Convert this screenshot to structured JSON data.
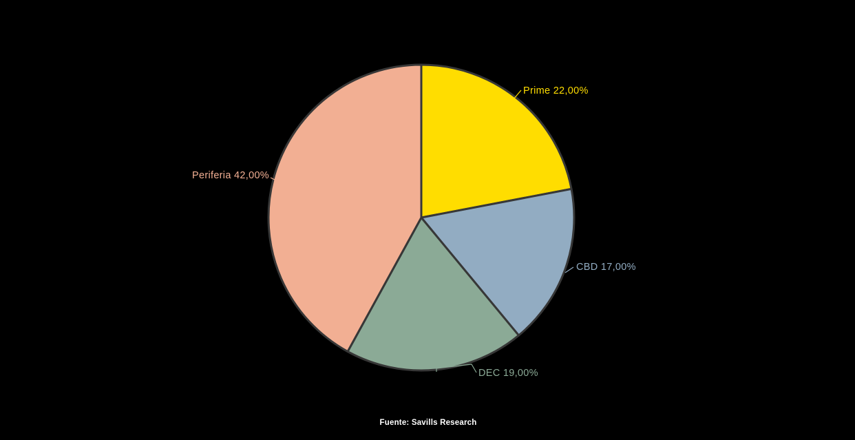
{
  "page": {
    "background_color": "#000000"
  },
  "chart_data": {
    "type": "pie",
    "title": "",
    "categories": [
      "Prime",
      "CBD",
      "DEC",
      "Periferia"
    ],
    "values": [
      22.0,
      17.0,
      19.0,
      42.0
    ],
    "unit": "%",
    "slices": [
      {
        "name": "Prime",
        "value": 22.0,
        "label": "Prime 22,00%",
        "color": "#FFDD00"
      },
      {
        "name": "CBD",
        "value": 17.0,
        "label": "CBD 17,00%",
        "color": "#92ACC2"
      },
      {
        "name": "DEC",
        "value": 19.0,
        "label": "DEC 19,00%",
        "color": "#8BAA96"
      },
      {
        "name": "Periferia",
        "value": 42.0,
        "label": "Periferia 42,00%",
        "color": "#F2AF93"
      }
    ],
    "start_angle": "12-oclock",
    "direction": "clockwise",
    "outline_color": "#373737",
    "legend": "none",
    "labels_position": "outside-with-leader-lines"
  },
  "footer": {
    "source_label": "Fuente: Savills Research"
  }
}
